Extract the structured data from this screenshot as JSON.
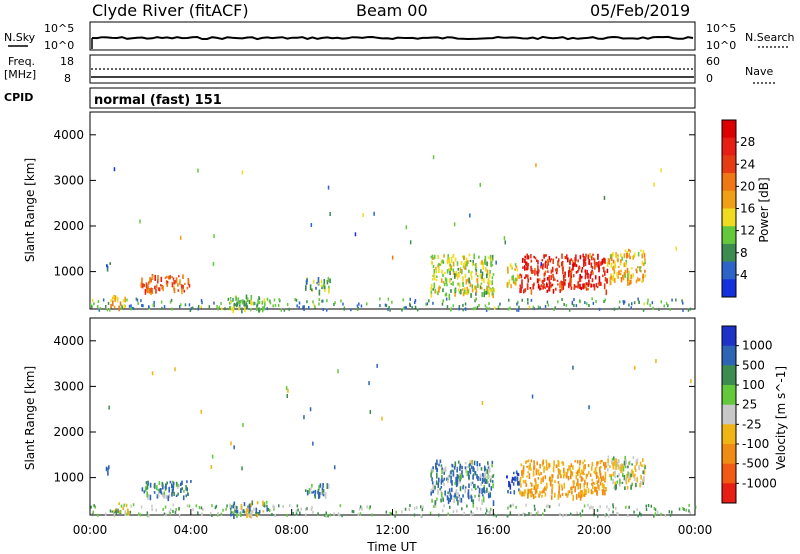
{
  "header": {
    "station": "Clyde River (fitACF)",
    "beam": "Beam 00",
    "date": "05/Feb/2019"
  },
  "noise_panel": {
    "left_label": "N.Sky",
    "right_label": "N.Search",
    "left_ticks": [
      "10^5",
      "10^0"
    ],
    "right_ticks": [
      "10^5",
      "10^0"
    ]
  },
  "freq_panel": {
    "left_label": "Freq.",
    "left_unit": "[MHz]",
    "right_label": "Nave",
    "left_ticks": [
      "18",
      "8"
    ],
    "right_ticks": [
      "60",
      "0"
    ]
  },
  "cpid": {
    "label": "CPID",
    "value": "normal (fast) 151"
  },
  "chart_data": [
    {
      "type": "heatmap",
      "name": "power",
      "ylabel": "Slant Range [km]",
      "xlabel": "",
      "ylim": [
        180,
        4500
      ],
      "yticks": [
        "1000",
        "2000",
        "3000",
        "4000"
      ],
      "colorbar": {
        "label": "Power [dB]",
        "ticks": [
          "4",
          "8",
          "12",
          "16",
          "20",
          "24",
          "28"
        ],
        "colors": [
          "#1432dc",
          "#2d64c8",
          "#3c8c50",
          "#64c83c",
          "#f0dc1e",
          "#f0a014",
          "#f07814",
          "#e63c14",
          "#e61e14",
          "#dc0000"
        ]
      },
      "regions": [
        {
          "x": [
            0.8,
            1.5
          ],
          "y": [
            250,
            500
          ],
          "value": 16
        },
        {
          "x": [
            0.6,
            0.8
          ],
          "y": [
            1100,
            1300
          ],
          "value": 6
        },
        {
          "x": [
            2.0,
            4.0
          ],
          "y": [
            600,
            950
          ],
          "value": 22
        },
        {
          "x": [
            5.5,
            7.0
          ],
          "y": [
            200,
            500
          ],
          "value": 10
        },
        {
          "x": [
            8.5,
            9.5
          ],
          "y": [
            600,
            900
          ],
          "value": 8
        },
        {
          "x": [
            13.5,
            16.0
          ],
          "y": [
            500,
            1400
          ],
          "value": 12
        },
        {
          "x": [
            16.5,
            17.0
          ],
          "y": [
            700,
            1200
          ],
          "value": 14
        },
        {
          "x": [
            17.0,
            20.5
          ],
          "y": [
            600,
            1400
          ],
          "value": 26
        },
        {
          "x": [
            20.5,
            22.0
          ],
          "y": [
            800,
            1500
          ],
          "value": 16
        }
      ]
    },
    {
      "type": "heatmap",
      "name": "velocity",
      "ylabel": "Slant Range [km]",
      "xlabel": "Time UT",
      "ylim": [
        180,
        4500
      ],
      "yticks": [
        "1000",
        "2000",
        "3000",
        "4000"
      ],
      "xticks": [
        "00:00",
        "04:00",
        "08:00",
        "12:00",
        "16:00",
        "20:00",
        "00:00"
      ],
      "colorbar": {
        "label": "Velocity [m s^-1]",
        "ticks": [
          "1000",
          "500",
          "100",
          "25",
          "-25",
          "-100",
          "-500",
          "-1000"
        ],
        "colors": [
          "#1e32c8",
          "#2d64b4",
          "#3c8c50",
          "#64c83c",
          "#c8c8c8",
          "#f0b414",
          "#f08c14",
          "#f05a14",
          "#e61e14"
        ]
      },
      "regions": [
        {
          "x": [
            0.8,
            1.5
          ],
          "y": [
            250,
            500
          ],
          "value": -100
        },
        {
          "x": [
            0.6,
            0.8
          ],
          "y": [
            1100,
            1300
          ],
          "value": 500
        },
        {
          "x": [
            2.0,
            4.0
          ],
          "y": [
            600,
            950
          ],
          "value": 100
        },
        {
          "x": [
            5.5,
            7.0
          ],
          "y": [
            200,
            500
          ],
          "value": 25
        },
        {
          "x": [
            8.5,
            9.5
          ],
          "y": [
            600,
            900
          ],
          "value": 100
        },
        {
          "x": [
            13.5,
            16.0
          ],
          "y": [
            500,
            1400
          ],
          "value": 100
        },
        {
          "x": [
            16.5,
            17.0
          ],
          "y": [
            700,
            1200
          ],
          "value": 500
        },
        {
          "x": [
            17.0,
            20.5
          ],
          "y": [
            600,
            1400
          ],
          "value": -500
        },
        {
          "x": [
            20.5,
            22.0
          ],
          "y": [
            800,
            1500
          ],
          "value": -100
        }
      ]
    }
  ]
}
